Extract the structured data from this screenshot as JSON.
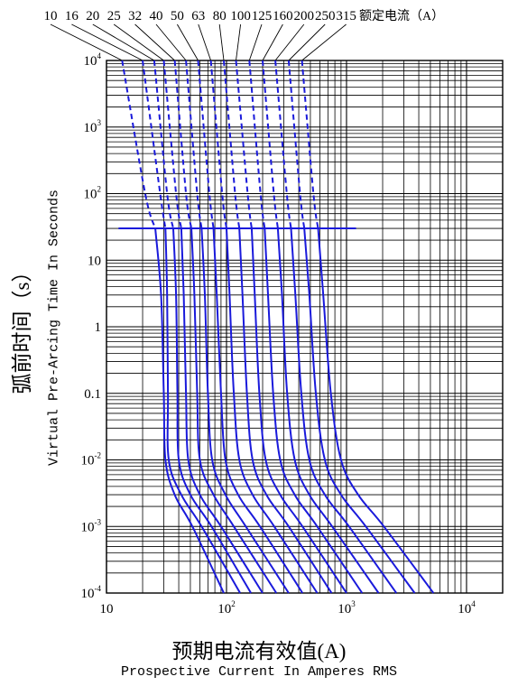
{
  "chart_data": {
    "type": "line",
    "title": "",
    "xlabel_cn": "预期电流有效值(A)",
    "xlabel_en": "Prospective Current In Amperes RMS",
    "ylabel_cn": "弧前时间（s）",
    "ylabel_en": "Virtual Pre-Arcing Time In Seconds",
    "x_scale": "log",
    "y_scale": "log",
    "xlim": [
      10,
      20000
    ],
    "ylim": [
      0.0001,
      10000
    ],
    "x_ticks": [
      {
        "value": 10,
        "label": "10",
        "sup": ""
      },
      {
        "value": 100,
        "label": "10",
        "sup": "2"
      },
      {
        "value": 1000,
        "label": "10",
        "sup": "3"
      },
      {
        "value": 10000,
        "label": "10",
        "sup": "4"
      }
    ],
    "y_ticks": [
      {
        "value": 10000,
        "label": "10",
        "sup": "4"
      },
      {
        "value": 1000,
        "label": "10",
        "sup": "3"
      },
      {
        "value": 100,
        "label": "10",
        "sup": "2"
      },
      {
        "value": 10,
        "label": "10",
        "sup": ""
      },
      {
        "value": 1,
        "label": "1",
        "sup": ""
      },
      {
        "value": 0.1,
        "label": "0.1",
        "sup": ""
      },
      {
        "value": 0.01,
        "label": "10",
        "sup": "-2"
      },
      {
        "value": 0.001,
        "label": "10",
        "sup": "-3"
      },
      {
        "value": 0.0001,
        "label": "10",
        "sup": "-4"
      }
    ],
    "grid": true,
    "curve_color": "#1a1adb",
    "curve_label_header": "额定电流（A）",
    "note": "",
    "reference_line_y": 30,
    "series": [
      {
        "name": "10",
        "points": [
          [
            13.5,
            10000
          ],
          [
            21,
            100
          ],
          [
            25.5,
            30
          ],
          [
            28.5,
            3
          ],
          [
            30,
            0.1
          ],
          [
            31,
            0.01
          ],
          [
            37,
            0.003
          ],
          [
            52,
            0.001
          ],
          [
            95,
            0.0001
          ]
        ]
      },
      {
        "name": "16",
        "points": [
          [
            20,
            10000
          ],
          [
            28,
            100
          ],
          [
            31,
            30
          ],
          [
            32,
            3
          ],
          [
            32.5,
            0.1
          ],
          [
            33,
            0.01
          ],
          [
            42,
            0.003
          ],
          [
            62,
            0.001
          ],
          [
            130,
            0.0001
          ]
        ]
      },
      {
        "name": "20",
        "points": [
          [
            25,
            10000
          ],
          [
            32,
            100
          ],
          [
            36,
            30
          ],
          [
            38,
            3
          ],
          [
            39,
            0.1
          ],
          [
            40,
            0.01
          ],
          [
            50,
            0.003
          ],
          [
            75,
            0.001
          ],
          [
            160,
            0.0001
          ]
        ]
      },
      {
        "name": "25",
        "points": [
          [
            30,
            10000
          ],
          [
            38,
            100
          ],
          [
            42,
            30
          ],
          [
            44,
            3
          ],
          [
            46,
            0.1
          ],
          [
            48,
            0.01
          ],
          [
            60,
            0.003
          ],
          [
            90,
            0.001
          ],
          [
            200,
            0.0001
          ]
        ]
      },
      {
        "name": "32",
        "points": [
          [
            37,
            10000
          ],
          [
            46,
            100
          ],
          [
            51,
            30
          ],
          [
            54,
            3
          ],
          [
            57,
            0.1
          ],
          [
            60,
            0.01
          ],
          [
            78,
            0.003
          ],
          [
            115,
            0.001
          ],
          [
            260,
            0.0001
          ]
        ]
      },
      {
        "name": "40",
        "points": [
          [
            46,
            10000
          ],
          [
            57,
            100
          ],
          [
            62,
            30
          ],
          [
            66,
            3
          ],
          [
            70,
            0.1
          ],
          [
            76,
            0.01
          ],
          [
            98,
            0.003
          ],
          [
            145,
            0.001
          ],
          [
            330,
            0.0001
          ]
        ]
      },
      {
        "name": "50",
        "points": [
          [
            58,
            10000
          ],
          [
            72,
            100
          ],
          [
            78,
            30
          ],
          [
            83,
            3
          ],
          [
            90,
            0.1
          ],
          [
            98,
            0.01
          ],
          [
            125,
            0.003
          ],
          [
            190,
            0.001
          ],
          [
            430,
            0.0001
          ]
        ]
      },
      {
        "name": "63",
        "points": [
          [
            74,
            10000
          ],
          [
            92,
            100
          ],
          [
            100,
            30
          ],
          [
            106,
            3
          ],
          [
            115,
            0.1
          ],
          [
            128,
            0.01
          ],
          [
            165,
            0.003
          ],
          [
            250,
            0.001
          ],
          [
            570,
            0.0001
          ]
        ]
      },
      {
        "name": "80",
        "points": [
          [
            95,
            10000
          ],
          [
            118,
            100
          ],
          [
            128,
            30
          ],
          [
            136,
            3
          ],
          [
            148,
            0.1
          ],
          [
            165,
            0.01
          ],
          [
            215,
            0.003
          ],
          [
            330,
            0.001
          ],
          [
            750,
            0.0001
          ]
        ]
      },
      {
        "name": "100",
        "points": [
          [
            120,
            10000
          ],
          [
            150,
            100
          ],
          [
            162,
            30
          ],
          [
            172,
            3
          ],
          [
            188,
            0.1
          ],
          [
            212,
            0.01
          ],
          [
            280,
            0.003
          ],
          [
            430,
            0.001
          ],
          [
            1000,
            0.0001
          ]
        ]
      },
      {
        "name": "125",
        "points": [
          [
            155,
            10000
          ],
          [
            192,
            100
          ],
          [
            208,
            30
          ],
          [
            222,
            3
          ],
          [
            245,
            0.1
          ],
          [
            280,
            0.01
          ],
          [
            370,
            0.003
          ],
          [
            570,
            0.001
          ],
          [
            1350,
            0.0001
          ]
        ]
      },
      {
        "name": "160",
        "points": [
          [
            200,
            10000
          ],
          [
            248,
            100
          ],
          [
            268,
            30
          ],
          [
            290,
            3
          ],
          [
            320,
            0.1
          ],
          [
            370,
            0.01
          ],
          [
            490,
            0.003
          ],
          [
            760,
            0.001
          ],
          [
            1850,
            0.0001
          ]
        ]
      },
      {
        "name": "200",
        "points": [
          [
            255,
            10000
          ],
          [
            318,
            100
          ],
          [
            345,
            30
          ],
          [
            375,
            3
          ],
          [
            420,
            0.1
          ],
          [
            490,
            0.01
          ],
          [
            660,
            0.003
          ],
          [
            1050,
            0.001
          ],
          [
            2600,
            0.0001
          ]
        ]
      },
      {
        "name": "250",
        "points": [
          [
            330,
            10000
          ],
          [
            410,
            100
          ],
          [
            445,
            30
          ],
          [
            490,
            3
          ],
          [
            555,
            0.1
          ],
          [
            660,
            0.01
          ],
          [
            900,
            0.003
          ],
          [
            1450,
            0.001
          ],
          [
            3700,
            0.0001
          ]
        ]
      },
      {
        "name": "315",
        "points": [
          [
            425,
            10000
          ],
          [
            530,
            100
          ],
          [
            580,
            30
          ],
          [
            640,
            3
          ],
          [
            740,
            0.1
          ],
          [
            900,
            0.01
          ],
          [
            1250,
            0.003
          ],
          [
            2050,
            0.001
          ],
          [
            5300,
            0.0001
          ]
        ]
      }
    ]
  }
}
